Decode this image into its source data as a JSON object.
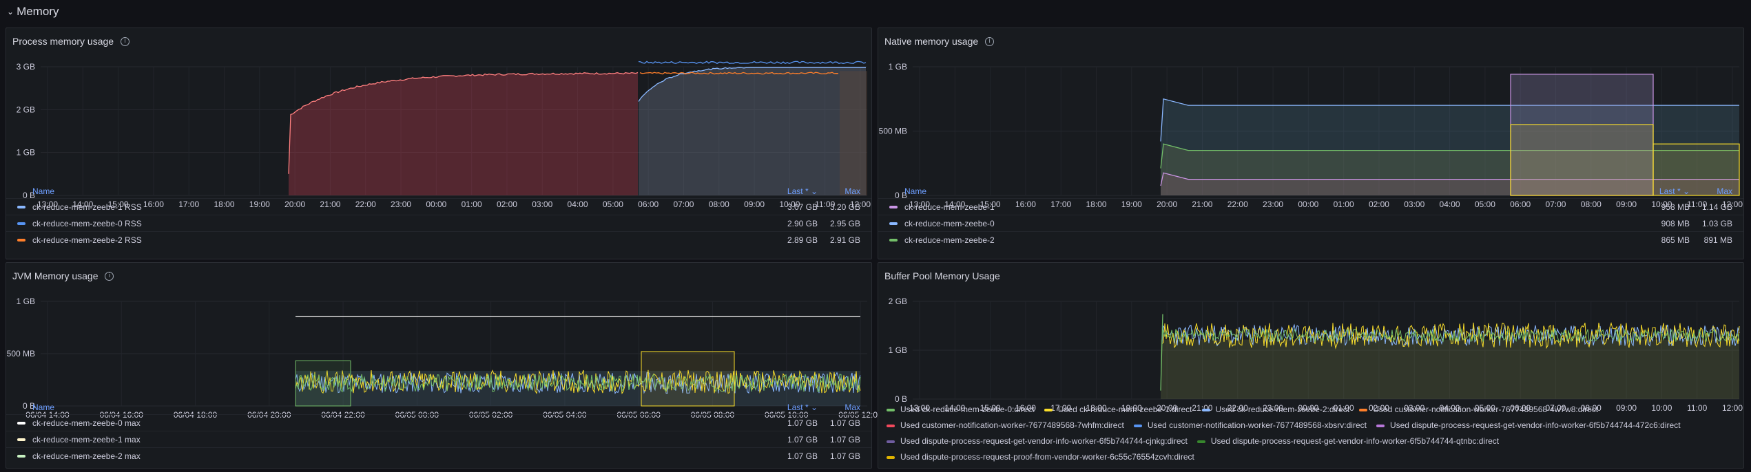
{
  "row": {
    "title": "Memory",
    "chevron": "chevron-down-icon"
  },
  "panels": {
    "process": {
      "title": "Process memory usage",
      "yticks": [
        "0 B",
        "1 GB",
        "2 GB",
        "3 GB"
      ],
      "xticks": [
        "13:00",
        "14:00",
        "15:00",
        "16:00",
        "17:00",
        "18:00",
        "19:00",
        "20:00",
        "21:00",
        "22:00",
        "23:00",
        "00:00",
        "01:00",
        "02:00",
        "03:00",
        "04:00",
        "05:00",
        "06:00",
        "07:00",
        "08:00",
        "09:00",
        "10:00",
        "11:00",
        "12:00"
      ],
      "legend_headers": {
        "name": "Name",
        "last": "Last * ⌄",
        "max": "Max"
      },
      "legend": [
        {
          "name": "ck-reduce-mem-zeebe-1 RSS",
          "last": "3.07 GB",
          "max": "3.20 GB",
          "color": "#8ab8ff"
        },
        {
          "name": "ck-reduce-mem-zeebe-0 RSS",
          "last": "2.90 GB",
          "max": "2.95 GB",
          "color": "#5794f2"
        },
        {
          "name": "ck-reduce-mem-zeebe-2 RSS",
          "last": "2.89 GB",
          "max": "2.91 GB",
          "color": "#ff7f2a"
        }
      ]
    },
    "native": {
      "title": "Native memory usage",
      "yticks": [
        "0 B",
        "500 MB",
        "1 GB"
      ],
      "xticks": [
        "13:00",
        "14:00",
        "15:00",
        "16:00",
        "17:00",
        "18:00",
        "19:00",
        "20:00",
        "21:00",
        "22:00",
        "23:00",
        "00:00",
        "01:00",
        "02:00",
        "03:00",
        "04:00",
        "05:00",
        "06:00",
        "07:00",
        "08:00",
        "09:00",
        "10:00",
        "11:00",
        "12:00"
      ],
      "legend_headers": {
        "name": "Name",
        "last": "Last * ⌄",
        "max": "Max"
      },
      "legend": [
        {
          "name": "ck-reduce-mem-zeebe-1",
          "last": "958 MB",
          "max": "1.14 GB",
          "color": "#ca95e5"
        },
        {
          "name": "ck-reduce-mem-zeebe-0",
          "last": "908 MB",
          "max": "1.03 GB",
          "color": "#8ab8ff"
        },
        {
          "name": "ck-reduce-mem-zeebe-2",
          "last": "865 MB",
          "max": "891 MB",
          "color": "#73bf69"
        }
      ]
    },
    "jvm": {
      "title": "JVM Memory usage",
      "yticks": [
        "0 B",
        "500 MB",
        "1 GB"
      ],
      "xticks": [
        "06/04 14:00",
        "06/04 16:00",
        "06/04 18:00",
        "06/04 20:00",
        "06/04 22:00",
        "06/05 00:00",
        "06/05 02:00",
        "06/05 04:00",
        "06/05 06:00",
        "06/05 08:00",
        "06/05 10:00",
        "06/05 12:00"
      ],
      "legend_headers": {
        "name": "Name",
        "last": "Last * ⌄",
        "max": "Max"
      },
      "legend": [
        {
          "name": "ck-reduce-mem-zeebe-0 max",
          "last": "1.07 GB",
          "max": "1.07 GB",
          "color": "#ffffff"
        },
        {
          "name": "ck-reduce-mem-zeebe-1 max",
          "last": "1.07 GB",
          "max": "1.07 GB",
          "color": "#fff5cc"
        },
        {
          "name": "ck-reduce-mem-zeebe-2 max",
          "last": "1.07 GB",
          "max": "1.07 GB",
          "color": "#c8f2c2"
        }
      ]
    },
    "buffer": {
      "title": "Buffer Pool Memory Usage",
      "yticks": [
        "0 B",
        "1 GB",
        "2 GB"
      ],
      "xticks": [
        "13:00",
        "14:00",
        "15:00",
        "16:00",
        "17:00",
        "18:00",
        "19:00",
        "20:00",
        "21:00",
        "22:00",
        "23:00",
        "00:00",
        "01:00",
        "02:00",
        "03:00",
        "04:00",
        "05:00",
        "06:00",
        "07:00",
        "08:00",
        "09:00",
        "10:00",
        "11:00",
        "12:00"
      ],
      "legend": [
        {
          "name": "Used ck-reduce-mem-zeebe-0:direct",
          "color": "#73bf69"
        },
        {
          "name": "Used ck-reduce-mem-zeebe-1:direct",
          "color": "#fade2a"
        },
        {
          "name": "Used ck-reduce-mem-zeebe-2:direct",
          "color": "#8ab8ff"
        },
        {
          "name": "Used customer-notification-worker-7677489568-4w7w8:direct",
          "color": "#ff7f2a"
        },
        {
          "name": "Used customer-notification-worker-7677489568-7whfm:direct",
          "color": "#f2495c"
        },
        {
          "name": "Used customer-notification-worker-7677489568-xbsrv:direct",
          "color": "#5794f2"
        },
        {
          "name": "Used dispute-process-request-get-vendor-info-worker-6f5b744744-472c6:direct",
          "color": "#b877d9"
        },
        {
          "name": "Used dispute-process-request-get-vendor-info-worker-6f5b744744-cjnkg:direct",
          "color": "#705da0"
        },
        {
          "name": "Used dispute-process-request-get-vendor-info-worker-6f5b744744-qtnbc:direct",
          "color": "#37872d"
        },
        {
          "name": "Used dispute-process-request-proof-from-vendor-worker-6c55c76554zcvh:direct",
          "color": "#e0b400"
        }
      ]
    }
  }
}
